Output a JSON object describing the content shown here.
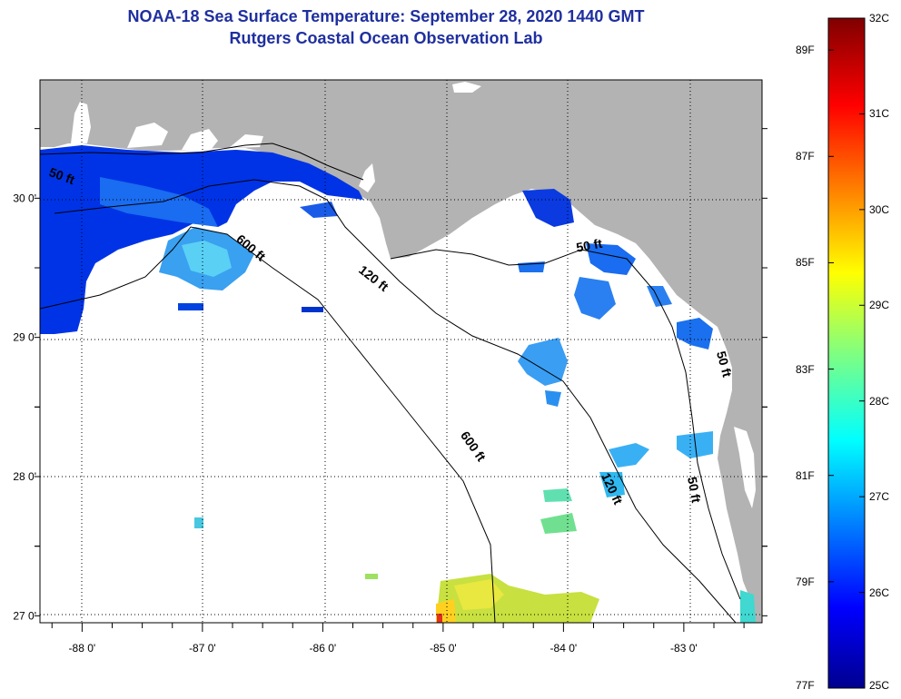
{
  "header": {
    "title": "NOAA-18 Sea Surface Temperature:  September 28, 2020 1440 GMT",
    "subtitle": "Rutgers Coastal Ocean Observation Lab"
  },
  "axes": {
    "lon_labels": [
      "-88 0'",
      "-87 0'",
      "-86 0'",
      "-85 0'",
      "-84 0'",
      "-83 0'"
    ],
    "lat_labels": [
      "30 0'",
      "29 0'",
      "28 0'",
      "27 0'"
    ],
    "lon_range": [
      -88.35,
      -82.35
    ],
    "lat_range": [
      26.95,
      30.85
    ]
  },
  "contours": [
    {
      "text": "50 ft",
      "lon": -88.18,
      "lat": 30.13,
      "rot": 20
    },
    {
      "text": "600 ft",
      "lon": -86.62,
      "lat": 29.62,
      "rot": 40
    },
    {
      "text": "120 ft",
      "lon": -85.6,
      "lat": 29.4,
      "rot": 38
    },
    {
      "text": "50 ft",
      "lon": -83.78,
      "lat": 29.63,
      "rot": -10
    },
    {
      "text": "600 ft",
      "lon": -84.78,
      "lat": 28.2,
      "rot": 55
    },
    {
      "text": "120 ft",
      "lon": -83.63,
      "lat": 27.9,
      "rot": 65
    },
    {
      "text": "50 ft",
      "lon": -82.95,
      "lat": 27.9,
      "rot": 80
    },
    {
      "text": "50 ft",
      "lon": -82.7,
      "lat": 28.8,
      "rot": 75
    }
  ],
  "colorbar": {
    "celsius": [
      "32C",
      "31C",
      "30C",
      "29C",
      "28C",
      "27C",
      "26C",
      "25C"
    ],
    "fahrenheit": [
      "89F",
      "87F",
      "85F",
      "83F",
      "81F",
      "79F",
      "77F"
    ],
    "min_c": 25,
    "max_c": 32
  },
  "colors": {
    "land": "#b3b3b3",
    "ocean_no_data": "#ffffff",
    "title": "#1f2f9f"
  }
}
